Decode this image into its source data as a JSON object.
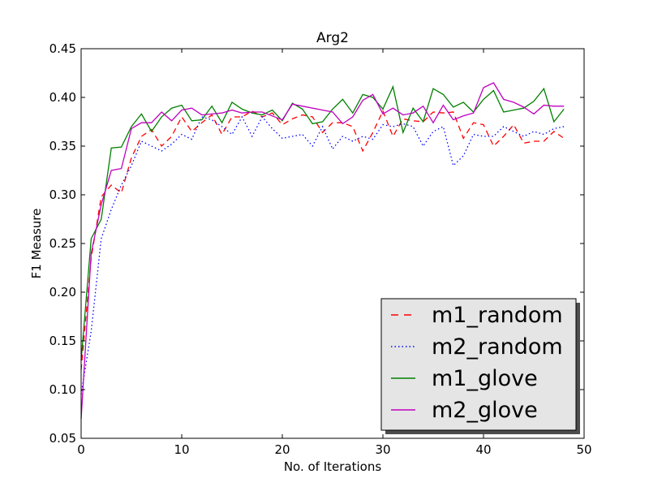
{
  "chart_data": {
    "type": "line",
    "title": "Arg2",
    "xlabel": "No. of Iterations",
    "ylabel": "F1 Measure",
    "xlim": [
      0,
      50
    ],
    "ylim": [
      0.05,
      0.45
    ],
    "xticks": [
      0,
      10,
      20,
      30,
      40,
      50
    ],
    "xtick_labels": [
      "0",
      "10",
      "20",
      "30",
      "40",
      "50"
    ],
    "yticks": [
      0.05,
      0.1,
      0.15,
      0.2,
      0.25,
      0.3,
      0.35,
      0.4,
      0.45
    ],
    "ytick_labels": [
      "0.05",
      "0.10",
      "0.15",
      "0.20",
      "0.25",
      "0.30",
      "0.35",
      "0.40",
      "0.45"
    ],
    "grid": false,
    "legend_position": "bottom-right",
    "x": [
      0,
      1,
      2,
      3,
      4,
      5,
      6,
      7,
      8,
      9,
      10,
      11,
      12,
      13,
      14,
      15,
      16,
      17,
      18,
      19,
      20,
      21,
      22,
      23,
      24,
      25,
      26,
      27,
      28,
      29,
      30,
      31,
      32,
      33,
      34,
      35,
      36,
      37,
      38,
      39,
      40,
      41,
      42,
      43,
      44,
      45,
      46,
      47,
      48
    ],
    "series": [
      {
        "name": "m1_random",
        "color": "#ff0000",
        "style": "dashed",
        "values": [
          0.12,
          0.235,
          0.298,
          0.31,
          0.302,
          0.338,
          0.36,
          0.367,
          0.35,
          0.36,
          0.38,
          0.365,
          0.374,
          0.382,
          0.362,
          0.38,
          0.38,
          0.386,
          0.38,
          0.384,
          0.372,
          0.378,
          0.382,
          0.38,
          0.364,
          0.374,
          0.374,
          0.37,
          0.345,
          0.364,
          0.386,
          0.36,
          0.378,
          0.376,
          0.375,
          0.385,
          0.384,
          0.385,
          0.358,
          0.374,
          0.372,
          0.35,
          0.36,
          0.372,
          0.353,
          0.355,
          0.355,
          0.365,
          0.358
        ]
      },
      {
        "name": "m2_random",
        "color": "#0000ff",
        "style": "dotted",
        "values": [
          0.095,
          0.16,
          0.255,
          0.285,
          0.31,
          0.33,
          0.355,
          0.35,
          0.345,
          0.352,
          0.362,
          0.357,
          0.38,
          0.377,
          0.37,
          0.362,
          0.38,
          0.36,
          0.38,
          0.368,
          0.358,
          0.36,
          0.362,
          0.35,
          0.37,
          0.347,
          0.36,
          0.355,
          0.36,
          0.357,
          0.372,
          0.37,
          0.373,
          0.37,
          0.35,
          0.365,
          0.37,
          0.33,
          0.34,
          0.362,
          0.36,
          0.36,
          0.37,
          0.365,
          0.36,
          0.365,
          0.362,
          0.368,
          0.37
        ]
      },
      {
        "name": "m1_glove",
        "color": "#008000",
        "style": "solid",
        "values": [
          0.13,
          0.255,
          0.275,
          0.348,
          0.349,
          0.37,
          0.383,
          0.365,
          0.38,
          0.389,
          0.392,
          0.376,
          0.377,
          0.391,
          0.374,
          0.395,
          0.388,
          0.384,
          0.382,
          0.387,
          0.376,
          0.394,
          0.388,
          0.373,
          0.375,
          0.388,
          0.398,
          0.384,
          0.403,
          0.4,
          0.388,
          0.411,
          0.364,
          0.389,
          0.375,
          0.409,
          0.403,
          0.39,
          0.395,
          0.385,
          0.398,
          0.407,
          0.385,
          0.387,
          0.389,
          0.396,
          0.409,
          0.375,
          0.388
        ]
      },
      {
        "name": "m2_glove",
        "color": "#bf00bf",
        "style": "solid",
        "values": [
          0.07,
          0.24,
          0.29,
          0.325,
          0.327,
          0.368,
          0.374,
          0.374,
          0.385,
          0.376,
          0.387,
          0.389,
          0.382,
          0.383,
          0.384,
          0.387,
          0.384,
          0.385,
          0.385,
          0.381,
          0.377,
          0.393,
          0.391,
          0.389,
          0.387,
          0.385,
          0.373,
          0.38,
          0.397,
          0.403,
          0.383,
          0.389,
          0.382,
          0.384,
          0.391,
          0.374,
          0.392,
          0.377,
          0.381,
          0.384,
          0.41,
          0.415,
          0.398,
          0.395,
          0.39,
          0.383,
          0.392,
          0.391,
          0.391
        ]
      }
    ]
  }
}
